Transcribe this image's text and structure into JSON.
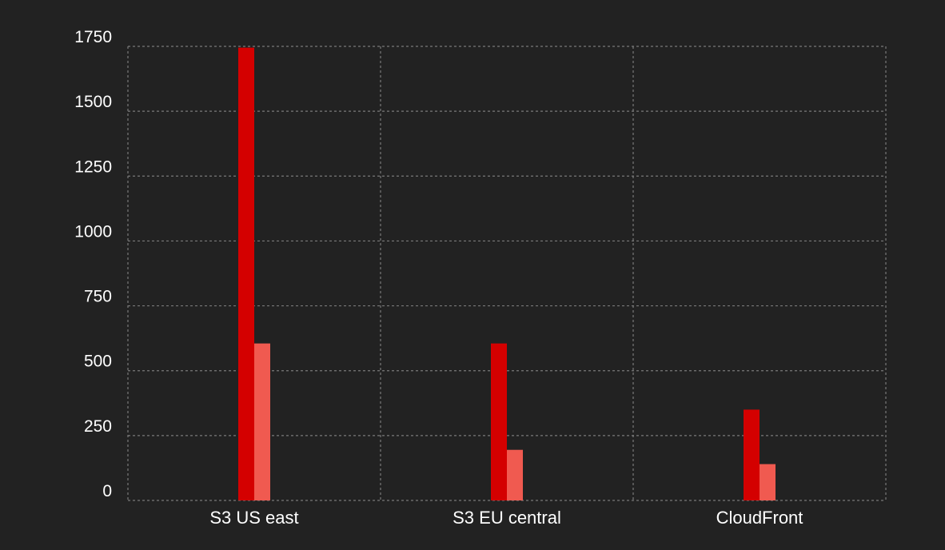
{
  "chart_data": {
    "type": "bar",
    "title": "",
    "xlabel": "",
    "ylabel": "",
    "categories": [
      "S3 US east",
      "S3 EU central",
      "CloudFront"
    ],
    "series": [
      {
        "values": [
          1745,
          605,
          350
        ],
        "color": "#d40000"
      },
      {
        "values": [
          605,
          195,
          140
        ],
        "color": "#f05a50"
      }
    ],
    "ylim": [
      0,
      1750
    ],
    "yticks": [
      "0",
      "250",
      "500",
      "750",
      "1000",
      "1250",
      "1500",
      "1750"
    ],
    "grid": true,
    "legend": "none"
  },
  "colors": {
    "background": "#222222",
    "grid": "#7a7a7a",
    "text": "#ffffff"
  }
}
